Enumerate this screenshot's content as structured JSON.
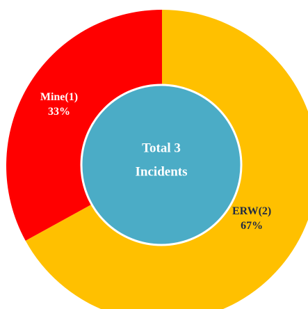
{
  "chart_data": {
    "type": "donut",
    "categories": [
      "ERW(2)",
      "Mine(1)"
    ],
    "values": [
      67,
      33
    ],
    "value_labels": [
      "67%",
      "33%"
    ],
    "colors": [
      "#FFC000",
      "#FF0000"
    ],
    "label_colors": [
      "#1f2a44",
      "#ffffff"
    ],
    "center_text": [
      "Total 3",
      "Incidents"
    ],
    "center_color": "#4BACC6"
  }
}
